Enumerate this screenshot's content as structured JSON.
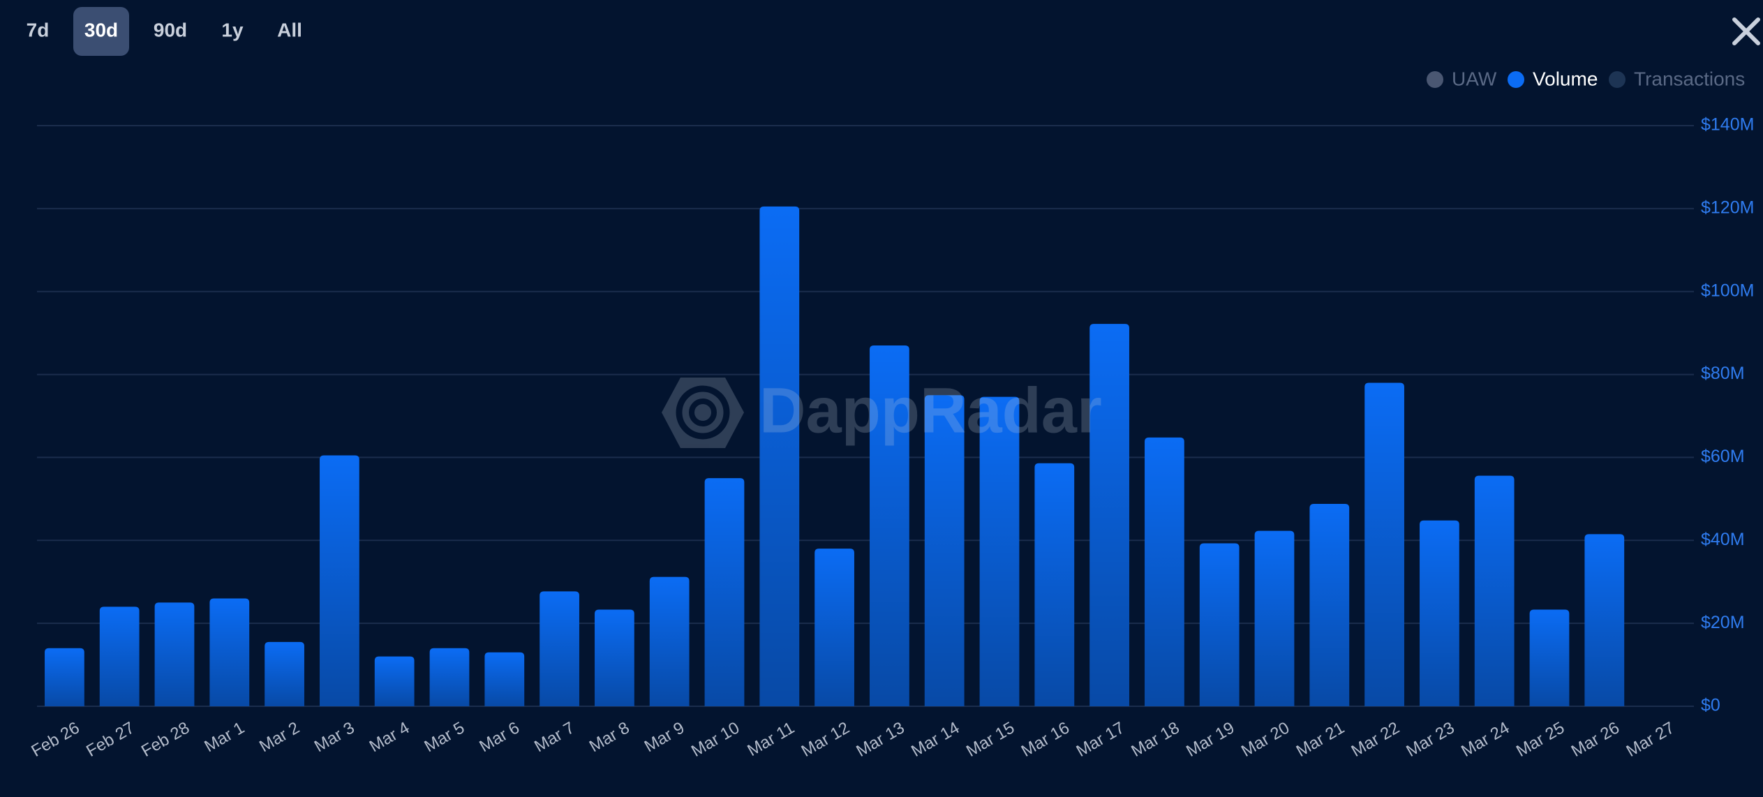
{
  "range_buttons": [
    "7d",
    "30d",
    "90d",
    "1y",
    "All"
  ],
  "active_button": 1,
  "chart_data": {
    "type": "bar",
    "watermark": "DappRadar",
    "legend": [
      {
        "name": "UAW",
        "color": "#4a5772"
      },
      {
        "name": "Volume",
        "color": "#0b6cf4"
      },
      {
        "name": "Transactions",
        "color": "#1d3454"
      }
    ],
    "categories": [
      "Feb 26",
      "Feb 27",
      "Feb 28",
      "Mar 1",
      "Mar 2",
      "Mar 3",
      "Mar 4",
      "Mar 5",
      "Mar 6",
      "Mar 7",
      "Mar 8",
      "Mar 9",
      "Mar 10",
      "Mar 11",
      "Mar 12",
      "Mar 13",
      "Mar 14",
      "Mar 15",
      "Mar 16",
      "Mar 17",
      "Mar 18",
      "Mar 19",
      "Mar 20",
      "Mar 21",
      "Mar 22",
      "Mar 23",
      "Mar 24",
      "Mar 25",
      "Mar 26",
      "Mar 27"
    ],
    "series": [
      {
        "name": "Volume",
        "color": "#0b6cf4",
        "values": [
          14000000,
          24000000,
          25000000,
          26000000,
          15500000,
          60500000,
          12000000,
          14000000,
          13000000,
          27700000,
          23300000,
          31200000,
          55000000,
          120500000,
          38000000,
          87000000,
          75000000,
          74600000,
          58600000,
          92200000,
          64800000,
          39300000,
          42300000,
          48800000,
          78000000,
          44800000,
          55600000,
          23300000,
          41500000,
          null
        ]
      }
    ],
    "ylim": [
      0,
      140000000
    ],
    "yticks": [
      {
        "value": 0,
        "label": "$0"
      },
      {
        "value": 20000000,
        "label": "$20M"
      },
      {
        "value": 40000000,
        "label": "$40M"
      },
      {
        "value": 60000000,
        "label": "$60M"
      },
      {
        "value": 80000000,
        "label": "$80M"
      },
      {
        "value": 100000000,
        "label": "$100M"
      },
      {
        "value": 120000000,
        "label": "$120M"
      },
      {
        "value": 140000000,
        "label": "$140M"
      }
    ],
    "grid": true
  }
}
